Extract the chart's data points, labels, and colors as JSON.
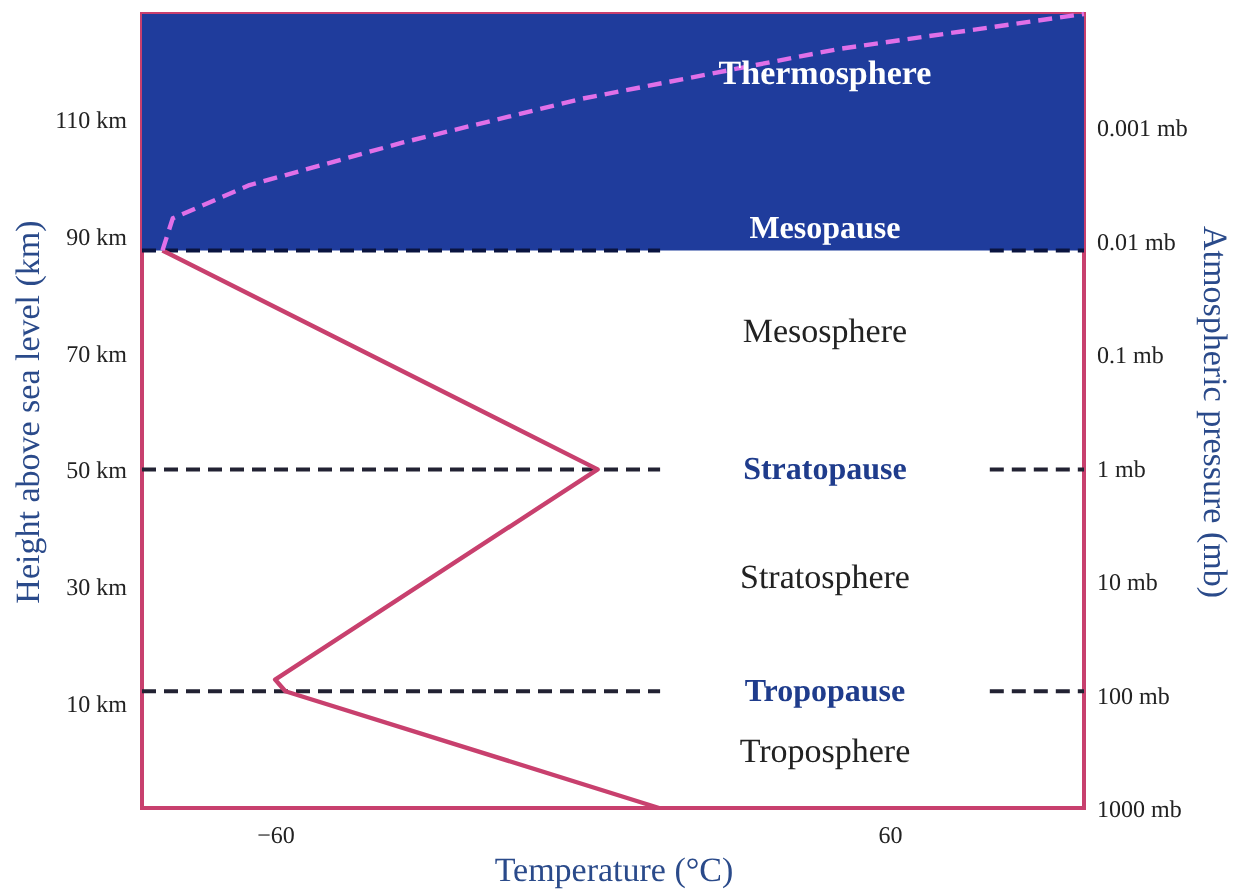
{
  "chart_data": {
    "type": "line",
    "xlabel": "Temperature (°C)",
    "ylabel": "Height above sea level (km)",
    "y2label": "Atmospheric pressure (mb)",
    "xlim": [
      -86,
      98
    ],
    "xticks": [
      -60,
      60
    ],
    "ylim": [
      -8,
      128
    ],
    "yticks": [
      {
        "value": 10,
        "label": "10 km"
      },
      {
        "value": 30,
        "label": "30 km"
      },
      {
        "value": 50,
        "label": "50 km"
      },
      {
        "value": 70,
        "label": "70 km"
      },
      {
        "value": 90,
        "label": "90 km"
      },
      {
        "value": 110,
        "label": "110 km"
      }
    ],
    "y2lim": [
      1000,
      0.0001
    ],
    "log": "y2",
    "y2ticks": [
      {
        "value": 1000,
        "label": "1000 mb"
      },
      {
        "value": 100,
        "label": "100 mb"
      },
      {
        "value": 10,
        "label": "10 mb"
      },
      {
        "value": 1,
        "label": "1 mb"
      },
      {
        "value": 0.1,
        "label": "0.1 mb"
      },
      {
        "value": 0.01,
        "label": "0.01 mb"
      },
      {
        "value": 0.001,
        "label": "0.001 mb"
      }
    ],
    "series": [
      {
        "color": "#c8406e",
        "line_style": "solid",
        "x": [
          15,
          -58,
          -60,
          3,
          -82
        ],
        "values": [
          -8,
          12,
          14,
          50,
          87.5
        ]
      },
      {
        "color": "#e070e8",
        "line_style": "dashed",
        "x": [
          -82,
          -80,
          -65,
          -35,
          0,
          50,
          98
        ],
        "values": [
          87.5,
          93,
          98.7,
          106,
          113.5,
          122,
          128
        ]
      }
    ],
    "bands": [
      {
        "axis": "y",
        "from": 87.5,
        "to": 128,
        "color": "#1f3c9c"
      }
    ],
    "ref_lines": [
      {
        "axis": "y",
        "value": 87.5,
        "label": "Mesopause",
        "color": "#0a1440",
        "line_style": "dashed"
      },
      {
        "axis": "y",
        "value": 50,
        "label": "Stratopause",
        "color": "#222233",
        "line_style": "dashed"
      },
      {
        "axis": "y",
        "value": 12,
        "label": "Tropopause",
        "color": "#222233",
        "line_style": "dashed"
      }
    ],
    "annotations": [
      "Thermosphere",
      "Mesosphere",
      "Stratosphere",
      "Troposphere"
    ],
    "grid": false
  }
}
